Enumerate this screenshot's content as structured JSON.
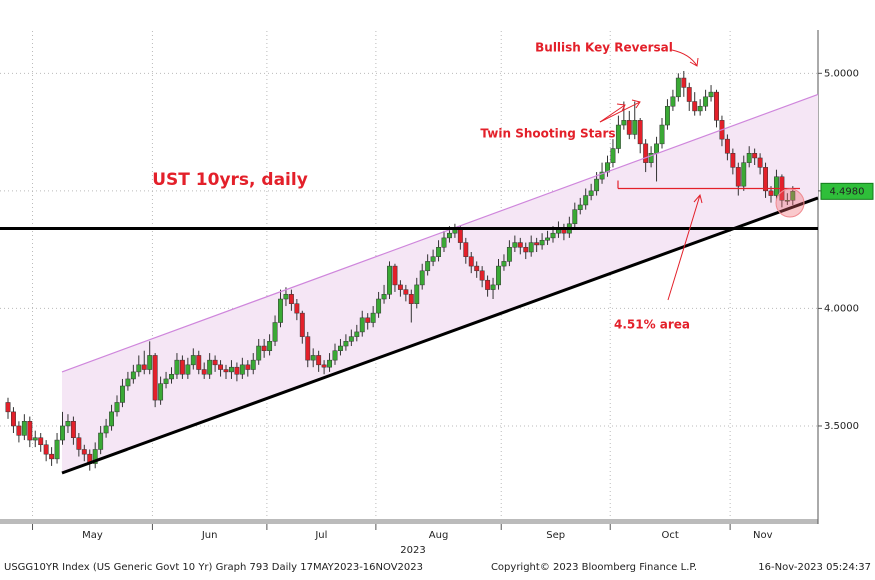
{
  "chart_data": {
    "type": "candlestick",
    "title": "UST 10yrs, daily",
    "annotations": {
      "twin": "Twin Shooting Stars",
      "reversal": "Bullish Key Reversal",
      "area": "4.51% area"
    },
    "months": [
      "May",
      "Jun",
      "Jul",
      "Aug",
      "Sep",
      "Oct",
      "Nov"
    ],
    "year": "2023",
    "footer": {
      "left": "USGG10YR Index (US Generic Govt 10 Yr) Graph 793  Daily 17MAY2023-16NOV2023",
      "center": "Copyright© 2023 Bloomberg Finance L.P.",
      "right": "16-Nov-2023 05:24:37"
    },
    "ylim": [
      3.1,
      5.18
    ],
    "yticks": [
      {
        "value": 3.5,
        "label": "3.5000"
      },
      {
        "value": 4.0,
        "label": "4.0000"
      },
      {
        "value": 4.5,
        "label": "4.5000"
      },
      {
        "value": 5.0,
        "label": "5.0000"
      }
    ],
    "last_label": "4.4980",
    "support": 4.34,
    "area_level": 4.51,
    "channel": {
      "lower": [
        3.3,
        4.47
      ],
      "upper": [
        3.73,
        4.91
      ]
    },
    "colors": {
      "up": "#3aa935",
      "down": "#e3202a"
    },
    "grid": true,
    "ohlc": [
      [
        3.6,
        3.62,
        3.53,
        3.56
      ],
      [
        3.56,
        3.58,
        3.47,
        3.5
      ],
      [
        3.5,
        3.52,
        3.43,
        3.46
      ],
      [
        3.46,
        3.55,
        3.44,
        3.52
      ],
      [
        3.52,
        3.54,
        3.41,
        3.44
      ],
      [
        3.44,
        3.48,
        3.41,
        3.45
      ],
      [
        3.45,
        3.47,
        3.39,
        3.42
      ],
      [
        3.42,
        3.44,
        3.35,
        3.38
      ],
      [
        3.38,
        3.41,
        3.33,
        3.36
      ],
      [
        3.36,
        3.47,
        3.34,
        3.44
      ],
      [
        3.44,
        3.56,
        3.42,
        3.5
      ],
      [
        3.5,
        3.55,
        3.47,
        3.52
      ],
      [
        3.52,
        3.54,
        3.42,
        3.45
      ],
      [
        3.45,
        3.47,
        3.37,
        3.4
      ],
      [
        3.4,
        3.42,
        3.35,
        3.38
      ],
      [
        3.38,
        3.4,
        3.31,
        3.34
      ],
      [
        3.34,
        3.43,
        3.32,
        3.4
      ],
      [
        3.4,
        3.5,
        3.38,
        3.47
      ],
      [
        3.47,
        3.53,
        3.45,
        3.5
      ],
      [
        3.5,
        3.59,
        3.48,
        3.56
      ],
      [
        3.56,
        3.63,
        3.54,
        3.6
      ],
      [
        3.6,
        3.7,
        3.58,
        3.67
      ],
      [
        3.67,
        3.73,
        3.65,
        3.7
      ],
      [
        3.7,
        3.76,
        3.68,
        3.73
      ],
      [
        3.73,
        3.8,
        3.71,
        3.76
      ],
      [
        3.76,
        3.82,
        3.72,
        3.74
      ],
      [
        3.74,
        3.86,
        3.72,
        3.8
      ],
      [
        3.8,
        3.81,
        3.58,
        3.61
      ],
      [
        3.61,
        3.71,
        3.59,
        3.68
      ],
      [
        3.68,
        3.73,
        3.66,
        3.7
      ],
      [
        3.7,
        3.75,
        3.68,
        3.72
      ],
      [
        3.72,
        3.81,
        3.7,
        3.78
      ],
      [
        3.78,
        3.8,
        3.7,
        3.72
      ],
      [
        3.72,
        3.79,
        3.7,
        3.76
      ],
      [
        3.76,
        3.83,
        3.74,
        3.8
      ],
      [
        3.8,
        3.82,
        3.72,
        3.74
      ],
      [
        3.74,
        3.77,
        3.7,
        3.72
      ],
      [
        3.72,
        3.81,
        3.7,
        3.78
      ],
      [
        3.78,
        3.8,
        3.73,
        3.76
      ],
      [
        3.76,
        3.78,
        3.71,
        3.74
      ],
      [
        3.74,
        3.76,
        3.7,
        3.73
      ],
      [
        3.73,
        3.78,
        3.7,
        3.75
      ],
      [
        3.75,
        3.77,
        3.69,
        3.72
      ],
      [
        3.72,
        3.79,
        3.7,
        3.76
      ],
      [
        3.76,
        3.78,
        3.71,
        3.74
      ],
      [
        3.74,
        3.81,
        3.72,
        3.78
      ],
      [
        3.78,
        3.87,
        3.76,
        3.84
      ],
      [
        3.84,
        3.87,
        3.79,
        3.82
      ],
      [
        3.82,
        3.89,
        3.8,
        3.86
      ],
      [
        3.86,
        3.97,
        3.84,
        3.94
      ],
      [
        3.94,
        4.08,
        3.92,
        4.04
      ],
      [
        4.04,
        4.09,
        4.01,
        4.06
      ],
      [
        4.06,
        4.08,
        3.99,
        4.02
      ],
      [
        4.02,
        4.04,
        3.95,
        3.98
      ],
      [
        3.98,
        3.99,
        3.85,
        3.88
      ],
      [
        3.88,
        3.9,
        3.75,
        3.78
      ],
      [
        3.78,
        3.83,
        3.75,
        3.8
      ],
      [
        3.8,
        3.82,
        3.73,
        3.76
      ],
      [
        3.76,
        3.78,
        3.72,
        3.75
      ],
      [
        3.75,
        3.81,
        3.73,
        3.78
      ],
      [
        3.78,
        3.85,
        3.76,
        3.82
      ],
      [
        3.82,
        3.87,
        3.8,
        3.84
      ],
      [
        3.84,
        3.89,
        3.82,
        3.86
      ],
      [
        3.86,
        3.91,
        3.84,
        3.88
      ],
      [
        3.88,
        3.93,
        3.86,
        3.9
      ],
      [
        3.9,
        3.99,
        3.88,
        3.96
      ],
      [
        3.96,
        3.98,
        3.91,
        3.94
      ],
      [
        3.94,
        4.01,
        3.92,
        3.98
      ],
      [
        3.98,
        4.07,
        3.96,
        4.04
      ],
      [
        4.04,
        4.1,
        4.02,
        4.06
      ],
      [
        4.06,
        4.2,
        4.04,
        4.18
      ],
      [
        4.18,
        4.19,
        4.07,
        4.1
      ],
      [
        4.1,
        4.12,
        4.05,
        4.08
      ],
      [
        4.08,
        4.1,
        4.03,
        4.06
      ],
      [
        4.06,
        4.08,
        3.94,
        4.02
      ],
      [
        4.02,
        4.13,
        4.0,
        4.1
      ],
      [
        4.1,
        4.19,
        4.08,
        4.16
      ],
      [
        4.16,
        4.23,
        4.14,
        4.2
      ],
      [
        4.2,
        4.25,
        4.18,
        4.22
      ],
      [
        4.22,
        4.29,
        4.2,
        4.26
      ],
      [
        4.26,
        4.33,
        4.24,
        4.3
      ],
      [
        4.3,
        4.35,
        4.28,
        4.32
      ],
      [
        4.32,
        4.36,
        4.3,
        4.34
      ],
      [
        4.34,
        4.35,
        4.25,
        4.28
      ],
      [
        4.28,
        4.3,
        4.19,
        4.22
      ],
      [
        4.22,
        4.24,
        4.15,
        4.18
      ],
      [
        4.18,
        4.2,
        4.13,
        4.16
      ],
      [
        4.16,
        4.18,
        4.09,
        4.12
      ],
      [
        4.12,
        4.14,
        4.05,
        4.08
      ],
      [
        4.08,
        4.13,
        4.04,
        4.1
      ],
      [
        4.1,
        4.21,
        4.08,
        4.18
      ],
      [
        4.18,
        4.23,
        4.16,
        4.2
      ],
      [
        4.2,
        4.29,
        4.18,
        4.26
      ],
      [
        4.26,
        4.31,
        4.24,
        4.28
      ],
      [
        4.28,
        4.3,
        4.23,
        4.26
      ],
      [
        4.26,
        4.28,
        4.21,
        4.24
      ],
      [
        4.24,
        4.31,
        4.22,
        4.28
      ],
      [
        4.28,
        4.3,
        4.24,
        4.27
      ],
      [
        4.27,
        4.32,
        4.25,
        4.29
      ],
      [
        4.29,
        4.33,
        4.27,
        4.3
      ],
      [
        4.3,
        4.35,
        4.28,
        4.32
      ],
      [
        4.32,
        4.37,
        4.3,
        4.34
      ],
      [
        4.34,
        4.36,
        4.29,
        4.32
      ],
      [
        4.32,
        4.39,
        4.3,
        4.36
      ],
      [
        4.36,
        4.45,
        4.34,
        4.42
      ],
      [
        4.42,
        4.47,
        4.4,
        4.44
      ],
      [
        4.44,
        4.51,
        4.42,
        4.48
      ],
      [
        4.48,
        4.53,
        4.46,
        4.5
      ],
      [
        4.5,
        4.58,
        4.48,
        4.55
      ],
      [
        4.55,
        4.62,
        4.53,
        4.58
      ],
      [
        4.58,
        4.65,
        4.56,
        4.62
      ],
      [
        4.62,
        4.72,
        4.6,
        4.68
      ],
      [
        4.68,
        4.82,
        4.66,
        4.78
      ],
      [
        4.78,
        4.88,
        4.76,
        4.8
      ],
      [
        4.8,
        4.84,
        4.72,
        4.74
      ],
      [
        4.74,
        4.88,
        4.72,
        4.8
      ],
      [
        4.8,
        4.81,
        4.66,
        4.7
      ],
      [
        4.7,
        4.72,
        4.58,
        4.62
      ],
      [
        4.62,
        4.69,
        4.6,
        4.66
      ],
      [
        4.66,
        4.73,
        4.54,
        4.7
      ],
      [
        4.7,
        4.81,
        4.68,
        4.78
      ],
      [
        4.78,
        4.89,
        4.76,
        4.86
      ],
      [
        4.86,
        4.93,
        4.84,
        4.9
      ],
      [
        4.9,
        5.0,
        4.88,
        4.98
      ],
      [
        4.98,
        5.01,
        4.9,
        4.94
      ],
      [
        4.94,
        4.96,
        4.84,
        4.88
      ],
      [
        4.88,
        4.92,
        4.82,
        4.84
      ],
      [
        4.84,
        4.89,
        4.82,
        4.86
      ],
      [
        4.86,
        4.93,
        4.84,
        4.9
      ],
      [
        4.9,
        4.95,
        4.88,
        4.92
      ],
      [
        4.92,
        4.93,
        4.77,
        4.8
      ],
      [
        4.8,
        4.82,
        4.69,
        4.72
      ],
      [
        4.72,
        4.74,
        4.63,
        4.66
      ],
      [
        4.66,
        4.68,
        4.57,
        4.6
      ],
      [
        4.6,
        4.62,
        4.48,
        4.52
      ],
      [
        4.52,
        4.65,
        4.5,
        4.62
      ],
      [
        4.62,
        4.69,
        4.6,
        4.66
      ],
      [
        4.66,
        4.68,
        4.61,
        4.64
      ],
      [
        4.64,
        4.66,
        4.57,
        4.6
      ],
      [
        4.6,
        4.62,
        4.47,
        4.5
      ],
      [
        4.5,
        4.52,
        4.45,
        4.48
      ],
      [
        4.48,
        4.59,
        4.46,
        4.56
      ],
      [
        4.56,
        4.57,
        4.43,
        4.46
      ],
      [
        4.46,
        4.49,
        4.44,
        4.46
      ],
      [
        4.46,
        4.52,
        4.44,
        4.498
      ]
    ]
  }
}
